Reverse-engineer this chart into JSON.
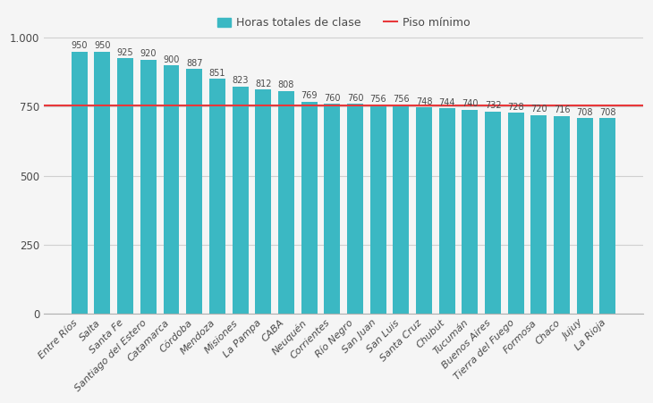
{
  "categories": [
    "Entre Ríos",
    "Salta",
    "Santa Fe",
    "Santiago del Estero",
    "Catamarca",
    "Córdoba",
    "Mendoza",
    "Misiones",
    "La Pampa",
    "CABA",
    "Neuquén",
    "Corrientes",
    "Río Negro",
    "San Juan",
    "San Luis",
    "Santa Cruz",
    "Chubut",
    "Tucumán",
    "Buenos Aires",
    "Tierra del Fuego",
    "Formosa",
    "Chaco",
    "Jujuy",
    "La Rioja"
  ],
  "values": [
    950,
    950,
    925,
    920,
    900,
    887,
    851,
    823,
    812,
    808,
    769,
    760,
    760,
    756,
    756,
    748,
    744,
    740,
    732,
    728,
    720,
    716,
    708,
    708
  ],
  "bar_color": "#3BB8C3",
  "line_value": 756,
  "line_color": "#E8373A",
  "yticks_vals": [
    0,
    250,
    500,
    750,
    1000
  ],
  "ytick_labels": [
    "0",
    "250",
    "500",
    "750",
    "1.000"
  ],
  "background_color": "#f5f5f5",
  "plot_bg_color": "#f5f5f5",
  "legend_bar_label": "Horas totales de clase",
  "legend_line_label": "Piso mínimo",
  "label_fontsize": 7.0,
  "tick_fontsize": 8.0,
  "ylim": [
    0,
    1020
  ]
}
